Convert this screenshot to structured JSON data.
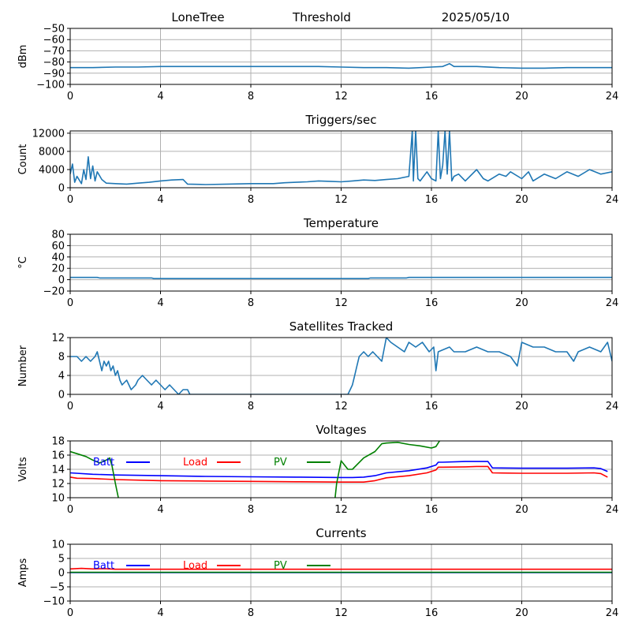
{
  "header": {
    "station": "LoneTree",
    "mode": "Threshold",
    "date": "2025/05/10"
  },
  "chart_data": [
    {
      "type": "line",
      "title": "",
      "xlabel": "",
      "ylabel": "dBm",
      "xlim": [
        0,
        24
      ],
      "ylim": [
        -100,
        -50
      ],
      "x_ticks": [
        "0",
        "4",
        "8",
        "12",
        "16",
        "20",
        "24"
      ],
      "y_ticks": [
        "−50",
        "−60",
        "−70",
        "−80",
        "−90",
        "−100"
      ],
      "y_tick_values": [
        -50,
        -60,
        -70,
        -80,
        -90,
        -100
      ],
      "grid": true,
      "series": [
        {
          "color": "#1f77b4",
          "x": [
            0,
            1,
            2,
            3,
            4,
            5,
            6,
            7,
            8,
            9,
            10,
            11,
            12,
            13,
            14,
            15,
            16,
            16.5,
            16.8,
            17,
            18,
            19,
            20,
            21,
            22,
            23,
            24
          ],
          "y": [
            -85,
            -85,
            -84.5,
            -84.5,
            -84,
            -84,
            -84,
            -84,
            -84,
            -84,
            -84,
            -84,
            -84.5,
            -85,
            -85,
            -85.5,
            -84.5,
            -84,
            -81.5,
            -84,
            -84,
            -85,
            -85.5,
            -85.5,
            -85,
            -85,
            -85
          ]
        }
      ]
    },
    {
      "type": "line",
      "title": "Triggers/sec",
      "xlabel": "",
      "ylabel": "Count",
      "xlim": [
        0,
        24
      ],
      "ylim": [
        0,
        12500
      ],
      "x_ticks": [
        "0",
        "4",
        "8",
        "12",
        "16",
        "20",
        "24"
      ],
      "y_ticks": [
        "0",
        "4000",
        "8000",
        "12000"
      ],
      "y_tick_values": [
        0,
        4000,
        8000,
        12000
      ],
      "grid": true,
      "series": [
        {
          "color": "#1f77b4",
          "x": [
            0,
            0.1,
            0.2,
            0.3,
            0.5,
            0.6,
            0.7,
            0.8,
            0.9,
            1.0,
            1.1,
            1.2,
            1.4,
            1.6,
            2.0,
            2.5,
            3.0,
            3.5,
            4.0,
            4.5,
            5.0,
            5.2,
            6.0,
            7.0,
            8.0,
            9.0,
            9.5,
            10.0,
            10.5,
            11.0,
            11.5,
            12.0,
            12.5,
            13.0,
            13.5,
            14.0,
            14.5,
            15.0,
            15.15,
            15.2,
            15.3,
            15.4,
            15.5,
            15.8,
            16.0,
            16.2,
            16.3,
            16.4,
            16.5,
            16.6,
            16.7,
            16.8,
            16.9,
            17.0,
            17.2,
            17.5,
            18.0,
            18.3,
            18.5,
            19.0,
            19.3,
            19.5,
            20.0,
            20.3,
            20.5,
            21.0,
            21.5,
            22.0,
            22.5,
            23.0,
            23.5,
            24.0
          ],
          "y": [
            3000,
            5200,
            1200,
            2500,
            900,
            4000,
            1800,
            6800,
            2000,
            4800,
            1500,
            3500,
            1800,
            1000,
            900,
            800,
            1000,
            1200,
            1500,
            1700,
            1800,
            800,
            700,
            800,
            900,
            900,
            1100,
            1200,
            1300,
            1500,
            1400,
            1300,
            1500,
            1700,
            1600,
            1800,
            2000,
            2500,
            12500,
            1500,
            12500,
            2000,
            1500,
            3500,
            2000,
            1500,
            12500,
            2000,
            5000,
            12500,
            3000,
            12500,
            1500,
            2500,
            3000,
            1500,
            4000,
            2000,
            1500,
            3000,
            2500,
            3500,
            2000,
            3500,
            1500,
            3000,
            2000,
            3500,
            2500,
            4000,
            3000,
            3500
          ]
        }
      ]
    },
    {
      "type": "line",
      "title": "Temperature",
      "xlabel": "",
      "ylabel": "°C",
      "xlim": [
        0,
        24
      ],
      "ylim": [
        -20,
        80
      ],
      "x_ticks": [
        "0",
        "4",
        "8",
        "12",
        "16",
        "20",
        "24"
      ],
      "y_ticks": [
        "80",
        "60",
        "40",
        "20",
        "0",
        "−20"
      ],
      "y_tick_values": [
        80,
        60,
        40,
        20,
        0,
        -20
      ],
      "grid": true,
      "series": [
        {
          "color": "#1f77b4",
          "x": [
            0,
            1.2,
            1.3,
            3.6,
            3.7,
            13.2,
            13.3,
            14.9,
            15.0,
            24
          ],
          "y": [
            4,
            4,
            3,
            3,
            2,
            2,
            3,
            3,
            4,
            4
          ]
        }
      ]
    },
    {
      "type": "line",
      "title": "Satellites Tracked",
      "xlabel": "",
      "ylabel": "Number",
      "xlim": [
        0,
        24
      ],
      "ylim": [
        0,
        12
      ],
      "x_ticks": [
        "0",
        "4",
        "8",
        "12",
        "16",
        "20",
        "24"
      ],
      "y_ticks": [
        "0",
        "4",
        "8",
        "12"
      ],
      "y_tick_values": [
        0,
        4,
        8,
        12
      ],
      "grid": true,
      "series": [
        {
          "color": "#1f77b4",
          "x": [
            0,
            0.3,
            0.5,
            0.7,
            0.9,
            1.1,
            1.2,
            1.3,
            1.4,
            1.5,
            1.6,
            1.7,
            1.8,
            1.9,
            2.0,
            2.1,
            2.2,
            2.3,
            2.5,
            2.7,
            2.9,
            3.0,
            3.2,
            3.4,
            3.6,
            3.8,
            4.0,
            4.2,
            4.4,
            4.6,
            4.8,
            5.0,
            5.2,
            5.3,
            6.0,
            8.0,
            10.0,
            12.0,
            12.3,
            12.4,
            12.5,
            12.6,
            12.7,
            12.8,
            13.0,
            13.2,
            13.4,
            13.6,
            13.8,
            14.0,
            14.2,
            14.5,
            14.8,
            15.0,
            15.3,
            15.6,
            15.9,
            16.1,
            16.2,
            16.3,
            16.8,
            17.0,
            17.5,
            18.0,
            18.5,
            19.0,
            19.5,
            19.8,
            20.0,
            20.5,
            21.0,
            21.5,
            22.0,
            22.3,
            22.5,
            23.0,
            23.5,
            23.8,
            24.0
          ],
          "y": [
            8,
            8,
            7,
            8,
            7,
            8,
            9,
            7,
            5,
            7,
            6,
            7,
            5,
            6,
            4,
            5,
            3,
            2,
            3,
            1,
            2,
            3,
            4,
            3,
            2,
            3,
            2,
            1,
            2,
            1,
            0,
            1,
            1,
            0,
            0,
            0,
            0,
            0,
            0,
            1,
            2,
            4,
            6,
            8,
            9,
            8,
            9,
            8,
            7,
            12,
            11,
            10,
            9,
            11,
            10,
            11,
            9,
            10,
            5,
            9,
            10,
            9,
            9,
            10,
            9,
            9,
            8,
            6,
            11,
            10,
            10,
            9,
            9,
            7,
            9,
            10,
            9,
            11,
            7
          ]
        }
      ]
    },
    {
      "type": "line",
      "title": "Voltages",
      "xlabel": "",
      "ylabel": "Volts",
      "xlim": [
        0,
        24
      ],
      "ylim": [
        10,
        18
      ],
      "x_ticks": [
        "0",
        "4",
        "8",
        "12",
        "16",
        "20",
        "24"
      ],
      "y_ticks": [
        "10",
        "12",
        "14",
        "16",
        "18"
      ],
      "y_tick_values": [
        10,
        12,
        14,
        16,
        18
      ],
      "grid": true,
      "legend": "top, horizontal row",
      "series": [
        {
          "name": "Batt",
          "color": "#0000ff",
          "x": [
            0,
            1,
            2,
            4,
            6,
            8,
            10,
            12,
            12.5,
            13,
            13.5,
            14,
            15,
            15.8,
            16.2,
            16.3,
            16.5,
            17.5,
            18,
            18.5,
            18.7,
            20,
            22,
            23.2,
            23.5,
            23.8
          ],
          "y": [
            13.5,
            13.3,
            13.2,
            13.1,
            13.0,
            12.95,
            12.9,
            12.85,
            12.85,
            12.9,
            13.1,
            13.5,
            13.8,
            14.2,
            14.6,
            15.0,
            15.0,
            15.1,
            15.1,
            15.1,
            14.2,
            14.15,
            14.15,
            14.2,
            14.1,
            13.7
          ]
        },
        {
          "name": "Load",
          "color": "#ff0000",
          "x": [
            0,
            0.3,
            1,
            2,
            4,
            6,
            8,
            10,
            12,
            12.5,
            13,
            13.5,
            14,
            15,
            15.8,
            16.2,
            16.3,
            16.5,
            17.5,
            18,
            18.5,
            18.7,
            20,
            22,
            23.2,
            23.5,
            23.8
          ],
          "y": [
            12.9,
            12.75,
            12.7,
            12.55,
            12.4,
            12.35,
            12.3,
            12.25,
            12.2,
            12.2,
            12.2,
            12.4,
            12.8,
            13.1,
            13.5,
            13.9,
            14.3,
            14.3,
            14.35,
            14.4,
            14.4,
            13.5,
            13.45,
            13.45,
            13.5,
            13.4,
            12.9
          ]
        },
        {
          "name": "PV",
          "color": "#008000",
          "x": [
            0,
            0.3,
            0.7,
            1.0,
            1.3,
            1.6,
            1.75,
            1.85,
            2.0,
            2.1,
            2.2,
            2.4,
            11.6,
            11.7,
            11.8,
            12.0,
            12.3,
            12.5,
            13.0,
            13.5,
            13.8,
            14.0,
            14.5,
            15.0,
            15.5,
            16.0,
            16.2,
            16.4
          ],
          "y": [
            16.5,
            16.2,
            15.8,
            15.3,
            14.9,
            15.3,
            15.6,
            14.5,
            12.0,
            10.5,
            9.0,
            5.0,
            5.0,
            9.0,
            12.0,
            15.2,
            14.0,
            14.0,
            15.6,
            16.5,
            17.6,
            17.7,
            17.8,
            17.5,
            17.3,
            17.0,
            17.2,
            18.2
          ]
        }
      ]
    },
    {
      "type": "line",
      "title": "Currents",
      "xlabel": "",
      "ylabel": "Amps",
      "xlim": [
        0,
        24
      ],
      "ylim": [
        -10,
        10
      ],
      "x_ticks": [
        "0",
        "4",
        "8",
        "12",
        "16",
        "20",
        "24"
      ],
      "y_ticks": [
        "10",
        "5",
        "0",
        "−5",
        "−10"
      ],
      "y_tick_values": [
        10,
        5,
        0,
        -5,
        -10
      ],
      "grid": true,
      "legend": "top, horizontal row",
      "series": [
        {
          "name": "Batt",
          "color": "#0000ff",
          "x": [
            0,
            24
          ],
          "y": [
            0,
            0
          ]
        },
        {
          "name": "Load",
          "color": "#ff0000",
          "x": [
            0,
            0.5,
            1,
            1.5,
            2,
            4,
            8,
            12,
            16,
            20,
            24
          ],
          "y": [
            1.3,
            1.5,
            1.3,
            1.4,
            1.2,
            1.2,
            1.2,
            1.2,
            1.2,
            1.2,
            1.2
          ]
        },
        {
          "name": "PV",
          "color": "#008000",
          "x": [
            0,
            24
          ],
          "y": [
            0.1,
            0.1
          ]
        }
      ]
    }
  ]
}
